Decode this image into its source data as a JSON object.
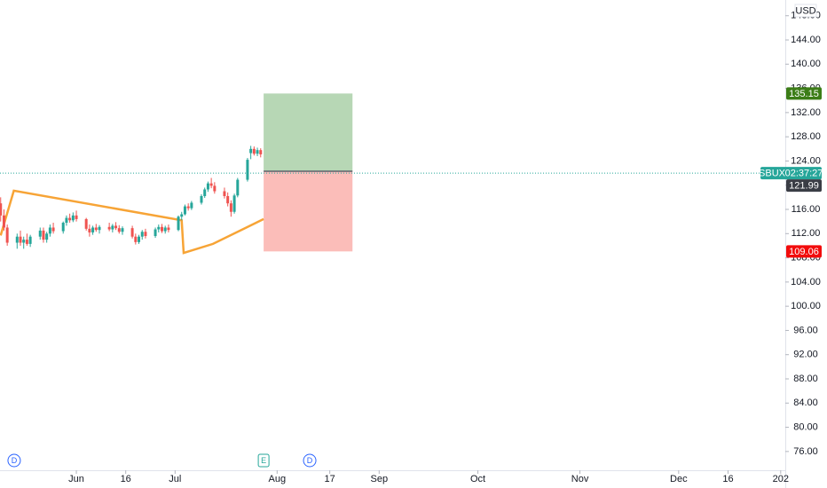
{
  "chart_data": {
    "type": "candlestick",
    "currency": "USD",
    "symbol": "SBUX",
    "countdown": "02:37:27",
    "up_color": "#26a69a",
    "down_color": "#ef5350",
    "xlim": [
      128.8,
      367.4
    ],
    "ylim": [
      72.9,
      150.6
    ],
    "xticks": [
      {
        "value": 152,
        "label": "Jun"
      },
      {
        "value": 167,
        "label": "16"
      },
      {
        "value": 182,
        "label": "Jul"
      },
      {
        "value": 213,
        "label": "Aug"
      },
      {
        "value": 229,
        "label": "17"
      },
      {
        "value": 244,
        "label": "Sep"
      },
      {
        "value": 274,
        "label": "Oct"
      },
      {
        "value": 305,
        "label": "Nov"
      },
      {
        "value": 335,
        "label": "Dec"
      },
      {
        "value": 350,
        "label": "16"
      },
      {
        "value": 366,
        "label": "202"
      }
    ],
    "yticks": [
      {
        "value": 148,
        "label": "148.00"
      },
      {
        "value": 144,
        "label": "144.00"
      },
      {
        "value": 140,
        "label": "140.00"
      },
      {
        "value": 136,
        "label": "136.00"
      },
      {
        "value": 132,
        "label": "132.00"
      },
      {
        "value": 128,
        "label": "128.00"
      },
      {
        "value": 124,
        "label": "124.00"
      },
      {
        "value": 120,
        "label": "120.00"
      },
      {
        "value": 116,
        "label": "116.00"
      },
      {
        "value": 112,
        "label": "112.00"
      },
      {
        "value": 108,
        "label": "108.00"
      },
      {
        "value": 104,
        "label": "104.00"
      },
      {
        "value": 100,
        "label": "100.00"
      },
      {
        "value": 96,
        "label": "96.00"
      },
      {
        "value": 92,
        "label": "92.00"
      },
      {
        "value": 88,
        "label": "88.00"
      },
      {
        "value": 84,
        "label": "84.00"
      },
      {
        "value": 80,
        "label": "80.00"
      },
      {
        "value": 76,
        "label": "76.00"
      }
    ],
    "candles": {
      "x": [
        129,
        130,
        131,
        134,
        135,
        136,
        137,
        138,
        141,
        142,
        143,
        144,
        145,
        148,
        149,
        150,
        151,
        152,
        155,
        156,
        157,
        158,
        159,
        162,
        163,
        164,
        165,
        166,
        169,
        170,
        171,
        172,
        173,
        176,
        177,
        178,
        179,
        180,
        183,
        184,
        185,
        186,
        187,
        190,
        191,
        192,
        193,
        194,
        197,
        198,
        199,
        200,
        201,
        204,
        205,
        206,
        207,
        208
      ],
      "open": [
        117,
        115,
        113,
        110.5,
        111.5,
        110.5,
        111,
        110.3,
        111.5,
        112.5,
        111,
        112,
        113,
        112.4,
        113.8,
        114.6,
        114.2,
        115,
        114.4,
        112.8,
        112.2,
        113,
        112.6,
        113.1,
        112.7,
        113.3,
        112.9,
        112.3,
        112.9,
        111.5,
        110.6,
        111.5,
        112.3,
        111.6,
        112.7,
        113.1,
        112.4,
        113,
        112.6,
        114.8,
        115.2,
        116.5,
        116.2,
        117.1,
        118.2,
        119.3,
        120.3,
        119.9,
        119,
        118.2,
        117,
        115.6,
        118.3,
        120.9,
        125.3,
        126,
        125.2,
        125.8
      ],
      "high": [
        118,
        116,
        113.5,
        112,
        112.5,
        111.5,
        112,
        111.8,
        113,
        113,
        112.3,
        113.5,
        113.8,
        114,
        115,
        115.3,
        115.5,
        115.8,
        114.6,
        113.5,
        113.3,
        113.6,
        113.4,
        113.8,
        113.6,
        113.9,
        113.4,
        113.2,
        113.3,
        112,
        111.8,
        112.6,
        112.8,
        113,
        113.5,
        113.6,
        113.3,
        113.5,
        115,
        115.6,
        116.8,
        117,
        117.4,
        118.5,
        119.6,
        120.6,
        121.2,
        120.5,
        119.6,
        118.8,
        117.5,
        118.6,
        121.2,
        124.5,
        126.5,
        126.4,
        126.2,
        126.1
      ],
      "low": [
        114,
        112.5,
        110,
        109.5,
        110,
        109.5,
        110,
        109.8,
        111,
        110.5,
        110.5,
        111.5,
        112,
        112,
        113.3,
        113.8,
        113.9,
        114,
        112.5,
        111.5,
        111.8,
        112.3,
        112,
        112.4,
        112.2,
        112.6,
        112,
        111.8,
        111.2,
        110.2,
        110.3,
        111,
        111.2,
        111.3,
        112.2,
        112.1,
        112,
        112.2,
        112.4,
        114.2,
        115,
        115.8,
        115.9,
        116.8,
        117.9,
        118.9,
        119.5,
        118.6,
        117.8,
        116.5,
        114.8,
        115.3,
        118,
        120.6,
        124.3,
        124.9,
        124.8,
        124.6
      ],
      "close": [
        115,
        113,
        110.5,
        111.5,
        110.5,
        111,
        110.3,
        111.5,
        112.5,
        111,
        112,
        113,
        112.4,
        113.8,
        114.6,
        114.2,
        115,
        114.4,
        112.8,
        112.2,
        113,
        112.6,
        113.1,
        112.7,
        113.3,
        112.9,
        112.3,
        112.9,
        111.5,
        110.6,
        111.5,
        112.3,
        111.6,
        112.7,
        113.1,
        112.4,
        113,
        112.6,
        114.8,
        115.2,
        116.5,
        116.2,
        117.1,
        118.2,
        119.3,
        120.3,
        119.9,
        119,
        118.2,
        117,
        115.6,
        118.3,
        120.9,
        124.2,
        126,
        125.2,
        125.8,
        125.1
      ]
    },
    "overlay": {
      "color": "#f7a436",
      "x": [
        129,
        133,
        184,
        184.6,
        193.5,
        208.9
      ],
      "values": [
        111.7,
        119.1,
        114.2,
        108.8,
        110.3,
        114.4
      ]
    },
    "last_price": 121.99,
    "position": {
      "x": [
        208.9,
        235.9
      ],
      "entry": 122.3,
      "target": 135.15,
      "stop": 109.06
    },
    "events": [
      {
        "label": "D",
        "x": 133.1
      },
      {
        "label": "E",
        "x": 208.9
      },
      {
        "label": "D",
        "x": 222.9
      }
    ]
  }
}
